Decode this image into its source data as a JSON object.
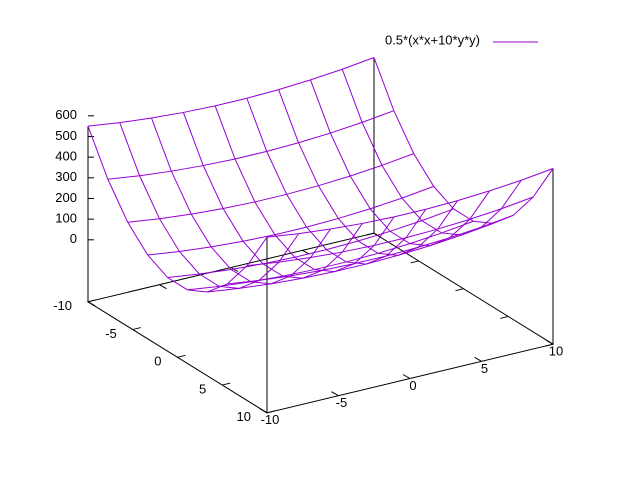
{
  "chart_data": {
    "type": "surface",
    "series": [
      {
        "name": "0.5*(x*x+10*y*y)",
        "color": "#9400d3",
        "x": [
          -10,
          -7.78,
          -5.56,
          -3.33,
          -1.11,
          1.11,
          3.33,
          5.56,
          7.78,
          10
        ],
        "y": [
          -10,
          -7.78,
          -5.56,
          -3.33,
          -1.11,
          1.11,
          3.33,
          5.56,
          7.78,
          10
        ],
        "z": [
          [
            550,
            530.2,
            515.4,
            505.6,
            500.6,
            500.6,
            505.6,
            515.4,
            530.2,
            550
          ],
          [
            352.5,
            332.7,
            317.9,
            308.1,
            303.1,
            303.1,
            308.1,
            317.9,
            332.7,
            352.5
          ],
          [
            204.3,
            184.5,
            169.7,
            159.9,
            154.9,
            154.9,
            159.9,
            169.7,
            184.5,
            204.3
          ],
          [
            105.6,
            85.8,
            71,
            61.2,
            56.2,
            56.2,
            61.2,
            71,
            85.8,
            105.6
          ],
          [
            56.2,
            36.4,
            21.6,
            11.8,
            6.8,
            6.8,
            11.8,
            21.6,
            36.4,
            56.2
          ],
          [
            56.2,
            36.4,
            21.6,
            11.8,
            6.8,
            6.8,
            11.8,
            21.6,
            36.4,
            56.2
          ],
          [
            105.6,
            85.8,
            71,
            61.2,
            56.2,
            56.2,
            61.2,
            71,
            85.8,
            105.6
          ],
          [
            204.3,
            184.5,
            169.7,
            159.9,
            154.9,
            154.9,
            159.9,
            169.7,
            184.5,
            204.3
          ],
          [
            352.5,
            332.7,
            317.9,
            308.1,
            303.1,
            303.1,
            308.1,
            317.9,
            332.7,
            352.5
          ],
          [
            550,
            530.2,
            515.4,
            505.6,
            500.6,
            500.6,
            505.6,
            515.4,
            530.2,
            550
          ]
        ]
      }
    ],
    "xlim": [
      -10,
      10
    ],
    "ylim": [
      -10,
      10
    ],
    "zlim": [
      0,
      600
    ],
    "xticks": [
      -10,
      -5,
      0,
      5,
      10
    ],
    "yticks": [
      -10,
      -5,
      0,
      5,
      10
    ],
    "zticks": [
      0,
      100,
      200,
      300,
      400,
      500,
      600
    ],
    "ticslevel": 0.5,
    "legend": "top-right"
  }
}
